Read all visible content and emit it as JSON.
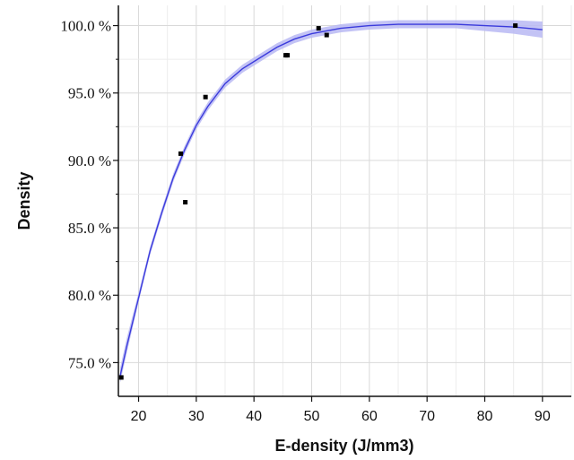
{
  "chart_data": {
    "type": "scatter",
    "xlabel": "E-density (J/mm3)",
    "ylabel": "Density",
    "xlim": [
      16.5,
      95
    ],
    "ylim": [
      72.5,
      101.5
    ],
    "x_ticks": [
      20,
      30,
      40,
      50,
      60,
      70,
      80,
      90
    ],
    "y_ticks": [
      75,
      80,
      85,
      90,
      95,
      100
    ],
    "y_tick_labels": [
      "75.0 %",
      "80.0 %",
      "85.0 %",
      "90.0 %",
      "95.0 %",
      "100.0 %"
    ],
    "grid": true,
    "colors": {
      "fit": "#3b3bdc",
      "band": "#b9b9f3",
      "points": "#000000",
      "grid": "#d9d9d9"
    },
    "points": [
      {
        "x": 17.0,
        "y": 73.9
      },
      {
        "x": 27.3,
        "y": 90.5
      },
      {
        "x": 28.1,
        "y": 86.9
      },
      {
        "x": 31.6,
        "y": 94.7
      },
      {
        "x": 45.5,
        "y": 97.8
      },
      {
        "x": 45.8,
        "y": 97.8
      },
      {
        "x": 51.2,
        "y": 99.8
      },
      {
        "x": 52.6,
        "y": 99.3
      },
      {
        "x": 85.3,
        "y": 100.0
      }
    ],
    "fit_line": {
      "x": [
        16.8,
        18,
        20,
        22,
        24,
        26,
        28,
        30,
        32,
        35,
        38,
        41,
        44,
        47,
        50,
        55,
        60,
        65,
        70,
        75,
        80,
        85,
        90
      ],
      "y": [
        74.0,
        76.3,
        79.8,
        83.3,
        86.1,
        88.7,
        90.8,
        92.6,
        94.0,
        95.7,
        96.8,
        97.6,
        98.4,
        99.0,
        99.4,
        99.8,
        100.0,
        100.1,
        100.1,
        100.1,
        100.0,
        99.9,
        99.7
      ],
      "band_lower": [
        73.5,
        75.8,
        79.5,
        83.0,
        85.8,
        88.4,
        90.5,
        92.3,
        93.7,
        95.4,
        96.5,
        97.3,
        98.1,
        98.7,
        99.1,
        99.5,
        99.7,
        99.8,
        99.8,
        99.8,
        99.6,
        99.4,
        99.1
      ],
      "band_upper": [
        74.6,
        76.9,
        80.2,
        83.6,
        86.4,
        89.0,
        91.1,
        92.9,
        94.3,
        96.0,
        97.1,
        97.9,
        98.7,
        99.3,
        99.7,
        100.1,
        100.3,
        100.4,
        100.4,
        100.4,
        100.4,
        100.4,
        100.3
      ]
    }
  }
}
